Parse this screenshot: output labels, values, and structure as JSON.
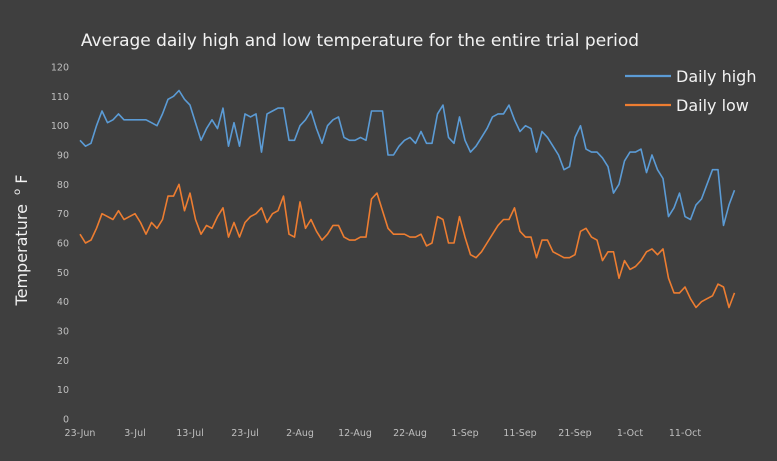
{
  "chart_data": {
    "type": "line",
    "title": "Average daily high and low temperature for the entire trial period",
    "xlabel": "",
    "ylabel": "Temperature",
    "ylabel_unit": "F",
    "ylabel_superscript": "o",
    "ylim": [
      0,
      120
    ],
    "yticks": [
      0,
      10,
      20,
      30,
      40,
      50,
      60,
      70,
      80,
      90,
      100,
      110,
      120
    ],
    "grid": false,
    "legend_position": "top-right",
    "x_start": "23-Jun",
    "x_tick_labels": [
      "23-Jun",
      "3-Jul",
      "13-Jul",
      "23-Jul",
      "2-Aug",
      "12-Aug",
      "22-Aug",
      "1-Sep",
      "11-Sep",
      "21-Sep",
      "1-Oct",
      "11-Oct"
    ],
    "x_tick_interval_days": 10,
    "series": [
      {
        "name": "Daily high",
        "color": "#5b9bd5",
        "values": [
          95,
          93,
          94,
          100,
          105,
          101,
          102,
          104,
          102,
          102,
          102,
          102,
          102,
          101,
          100,
          104,
          109,
          110,
          112,
          109,
          107,
          101,
          95,
          99,
          102,
          99,
          106,
          93,
          101,
          93,
          104,
          103,
          104,
          91,
          104,
          105,
          106,
          106,
          95,
          95,
          100,
          102,
          105,
          99,
          94,
          100,
          102,
          103,
          96,
          95,
          95,
          96,
          95,
          105,
          105,
          105,
          90,
          90,
          93,
          95,
          96,
          94,
          98,
          94,
          94,
          104,
          107,
          96,
          94,
          103,
          95,
          91,
          93,
          96,
          99,
          103,
          104,
          104,
          107,
          102,
          98,
          100,
          99,
          91,
          98,
          96,
          93,
          90,
          85,
          86,
          96,
          100,
          92,
          91,
          91,
          89,
          86,
          77,
          80,
          88,
          91,
          91,
          92,
          84,
          90,
          85,
          82,
          69,
          72,
          77,
          69,
          68,
          73,
          75,
          80,
          85,
          85,
          66,
          73,
          78
        ]
      },
      {
        "name": "Daily low",
        "color": "#ed7d31",
        "values": [
          63,
          60,
          61,
          65,
          70,
          69,
          68,
          71,
          68,
          69,
          70,
          67,
          63,
          67,
          65,
          68,
          76,
          76,
          80,
          71,
          77,
          68,
          63,
          66,
          65,
          69,
          72,
          62,
          67,
          62,
          67,
          69,
          70,
          72,
          67,
          70,
          71,
          76,
          63,
          62,
          74,
          65,
          68,
          64,
          61,
          63,
          66,
          66,
          62,
          61,
          61,
          62,
          62,
          75,
          77,
          71,
          65,
          63,
          63,
          63,
          62,
          62,
          63,
          59,
          60,
          69,
          68,
          60,
          60,
          69,
          62,
          56,
          55,
          57,
          60,
          63,
          66,
          68,
          68,
          72,
          64,
          62,
          62,
          55,
          61,
          61,
          57,
          56,
          55,
          55,
          56,
          64,
          65,
          62,
          61,
          54,
          57,
          57,
          48,
          54,
          51,
          52,
          54,
          57,
          58,
          56,
          58,
          48,
          43,
          43,
          45,
          41,
          38,
          40,
          41,
          42,
          46,
          45,
          38,
          43
        ]
      }
    ]
  }
}
